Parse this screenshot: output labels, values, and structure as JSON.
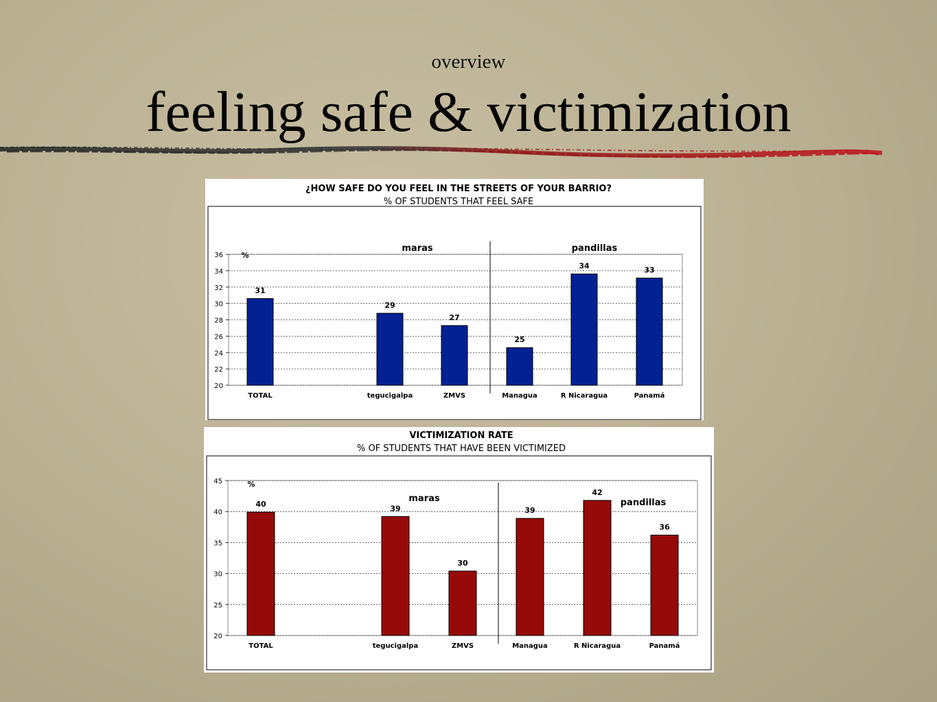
{
  "slide": {
    "subtitle": "overview",
    "title": "feeling safe & victimization"
  },
  "chart_data": [
    {
      "type": "bar",
      "title": "¿HOW SAFE DO YOU FEEL IN THE STREETS OF YOUR BARRIO?",
      "subtitle": "% OF STUDENTS THAT FEEL SAFE",
      "ylabel": "%",
      "ylim": [
        20,
        36
      ],
      "yticks": [
        "20",
        "22",
        "24",
        "26",
        "28",
        "30",
        "32",
        "34",
        "36"
      ],
      "categories": [
        "TOTAL",
        "",
        "tegucigalpa",
        "ZMVS",
        "Managua",
        "R Nicaragua",
        "Panamá"
      ],
      "values": [
        30.6,
        null,
        28.8,
        27.3,
        24.6,
        33.6,
        33.1
      ],
      "data_labels": [
        "31",
        "",
        "29",
        "27",
        "25",
        "34",
        "33"
      ],
      "group_labels": [
        "maras",
        "pandillas"
      ],
      "bar_color": "#032193",
      "grid": true
    },
    {
      "type": "bar",
      "title": "VICTIMIZATION RATE",
      "subtitle": "% OF STUDENTS THAT HAVE BEEN VICTIMIZED",
      "ylabel": "%",
      "ylim": [
        20,
        45
      ],
      "yticks": [
        "20",
        "25",
        "30",
        "35",
        "40",
        "45"
      ],
      "categories": [
        "TOTAL",
        "",
        "tegucigalpa",
        "ZMVS",
        "Managua",
        "R Nicaragua",
        "Panamá"
      ],
      "values": [
        39.9,
        null,
        39.2,
        30.4,
        38.9,
        41.8,
        36.2
      ],
      "data_labels": [
        "40",
        "",
        "39",
        "30",
        "39",
        "42",
        "36"
      ],
      "group_labels": [
        "maras",
        "pandillas"
      ],
      "bar_color": "#960A0A",
      "grid": true
    }
  ]
}
